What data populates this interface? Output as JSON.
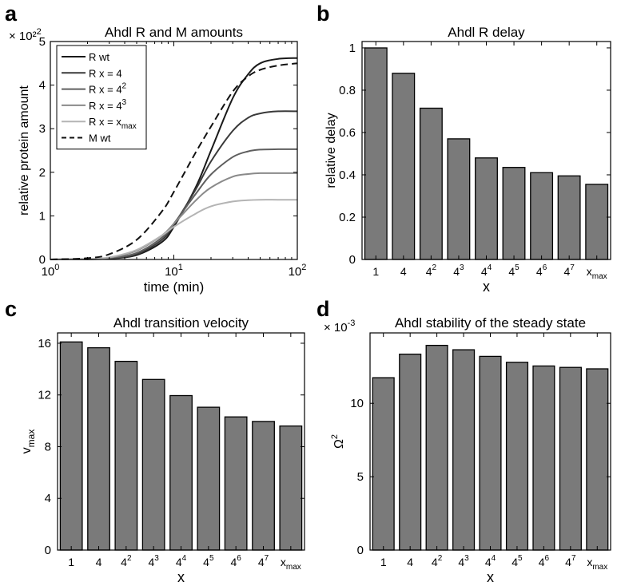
{
  "panels": [
    {
      "letter": "a"
    },
    {
      "letter": "b"
    },
    {
      "letter": "c"
    },
    {
      "letter": "d"
    }
  ],
  "chart_data": [
    {
      "type": "line",
      "title": "Ahdl R and M amounts",
      "xlabel": "time (min)",
      "ylabel": "relative protein amount",
      "x_scale": "log",
      "xlim": [
        1,
        100
      ],
      "ylim": [
        0,
        5
      ],
      "y_multiplier": "× 10²",
      "x_ticks": [
        1,
        10,
        100
      ],
      "x_tick_labels": [
        "10⁰",
        "10¹",
        "10²"
      ],
      "y_ticks": [
        0,
        1,
        2,
        3,
        4,
        5
      ],
      "legend_position": "top-left",
      "series": [
        {
          "name": "R wt",
          "color": "#1a1a1a",
          "dash": "solid",
          "x": [
            1,
            2,
            3,
            5,
            8,
            10,
            15,
            20,
            30,
            40,
            50,
            70,
            100
          ],
          "values": [
            0,
            0.005,
            0.02,
            0.1,
            0.4,
            0.75,
            1.65,
            2.5,
            3.7,
            4.25,
            4.5,
            4.6,
            4.62
          ]
        },
        {
          "name": "R x = 4",
          "color": "#3a3a3a",
          "dash": "solid",
          "x": [
            1,
            2,
            3,
            5,
            8,
            10,
            15,
            20,
            30,
            40,
            50,
            70,
            100
          ],
          "values": [
            0,
            0.005,
            0.02,
            0.12,
            0.45,
            0.8,
            1.6,
            2.25,
            2.95,
            3.25,
            3.35,
            3.4,
            3.4
          ]
        },
        {
          "name": "R x = 4²",
          "color": "#5f5f5f",
          "dash": "solid",
          "x": [
            1,
            2,
            3,
            5,
            8,
            10,
            15,
            20,
            30,
            40,
            50,
            70,
            100
          ],
          "values": [
            0,
            0.005,
            0.03,
            0.15,
            0.5,
            0.82,
            1.5,
            1.95,
            2.35,
            2.48,
            2.52,
            2.53,
            2.53
          ]
        },
        {
          "name": "R x = 4³",
          "color": "#8a8a8a",
          "dash": "solid",
          "x": [
            1,
            2,
            3,
            5,
            8,
            10,
            15,
            20,
            30,
            40,
            50,
            70,
            100
          ],
          "values": [
            0,
            0.008,
            0.04,
            0.2,
            0.55,
            0.82,
            1.35,
            1.65,
            1.9,
            1.96,
            1.98,
            1.98,
            1.98
          ]
        },
        {
          "name": "R x = x_max",
          "color": "#b4b4b4",
          "dash": "solid",
          "x": [
            1,
            2,
            3,
            5,
            8,
            10,
            15,
            20,
            30,
            40,
            50,
            70,
            100
          ],
          "values": [
            0,
            0.01,
            0.05,
            0.22,
            0.55,
            0.75,
            1.05,
            1.22,
            1.33,
            1.36,
            1.37,
            1.37,
            1.37
          ]
        },
        {
          "name": "M wt",
          "color": "#111111",
          "dash": "dashed",
          "x": [
            1,
            2,
            3,
            5,
            8,
            10,
            15,
            20,
            30,
            40,
            50,
            70,
            100
          ],
          "values": [
            0,
            0.03,
            0.12,
            0.45,
            1.1,
            1.55,
            2.45,
            3.05,
            3.85,
            4.2,
            4.35,
            4.45,
            4.5
          ]
        }
      ]
    },
    {
      "type": "bar",
      "title": "Ahdl R delay",
      "xlabel": "x",
      "ylabel": "relative delay",
      "ylim": [
        0,
        1.03
      ],
      "y_ticks": [
        0,
        0.2,
        0.4,
        0.6,
        0.8,
        1
      ],
      "y_tick_labels": [
        "0",
        "0.2",
        "0.4",
        "0.6",
        "0.8",
        "1"
      ],
      "categories": [
        {
          "base": "1",
          "sup": "",
          "sub": ""
        },
        {
          "base": "4",
          "sup": "",
          "sub": ""
        },
        {
          "base": "4",
          "sup": "2",
          "sub": ""
        },
        {
          "base": "4",
          "sup": "3",
          "sub": ""
        },
        {
          "base": "4",
          "sup": "4",
          "sub": ""
        },
        {
          "base": "4",
          "sup": "5",
          "sub": ""
        },
        {
          "base": "4",
          "sup": "6",
          "sub": ""
        },
        {
          "base": "4",
          "sup": "7",
          "sub": ""
        },
        {
          "base": "x",
          "sup": "",
          "sub": "max"
        }
      ],
      "values": [
        1.0,
        0.88,
        0.715,
        0.57,
        0.48,
        0.435,
        0.41,
        0.395,
        0.355
      ],
      "bar_color": "#7a7a7a"
    },
    {
      "type": "bar",
      "title": "Ahdl transition velocity",
      "xlabel": "x",
      "ylabel": "v_max",
      "ylim": [
        0,
        16.8
      ],
      "y_ticks": [
        0,
        4,
        8,
        12,
        16
      ],
      "y_tick_labels": [
        "0",
        "4",
        "8",
        "12",
        "16"
      ],
      "categories": [
        {
          "base": "1",
          "sup": "",
          "sub": ""
        },
        {
          "base": "4",
          "sup": "",
          "sub": ""
        },
        {
          "base": "4",
          "sup": "2",
          "sub": ""
        },
        {
          "base": "4",
          "sup": "3",
          "sub": ""
        },
        {
          "base": "4",
          "sup": "4",
          "sub": ""
        },
        {
          "base": "4",
          "sup": "5",
          "sub": ""
        },
        {
          "base": "4",
          "sup": "6",
          "sub": ""
        },
        {
          "base": "4",
          "sup": "7",
          "sub": ""
        },
        {
          "base": "x",
          "sup": "",
          "sub": "max"
        }
      ],
      "values": [
        16.1,
        15.65,
        14.6,
        13.2,
        11.95,
        11.05,
        10.3,
        9.95,
        9.6
      ],
      "bar_color": "#7a7a7a"
    },
    {
      "type": "bar",
      "title": "Ahdl stability of the steady state",
      "xlabel": "x",
      "ylabel": "Ω²",
      "y_multiplier": "× 10⁻³",
      "ylim": [
        0,
        14.8
      ],
      "y_ticks": [
        0,
        5,
        10
      ],
      "y_tick_labels": [
        "0",
        "5",
        "10"
      ],
      "categories": [
        {
          "base": "1",
          "sup": "",
          "sub": ""
        },
        {
          "base": "4",
          "sup": "",
          "sub": ""
        },
        {
          "base": "4",
          "sup": "2",
          "sub": ""
        },
        {
          "base": "4",
          "sup": "3",
          "sub": ""
        },
        {
          "base": "4",
          "sup": "4",
          "sub": ""
        },
        {
          "base": "4",
          "sup": "5",
          "sub": ""
        },
        {
          "base": "4",
          "sup": "6",
          "sub": ""
        },
        {
          "base": "4",
          "sup": "7",
          "sub": ""
        },
        {
          "base": "x",
          "sup": "",
          "sub": "max"
        }
      ],
      "values": [
        11.75,
        13.35,
        13.95,
        13.65,
        13.2,
        12.8,
        12.55,
        12.45,
        12.35
      ],
      "bar_color": "#7a7a7a"
    }
  ]
}
